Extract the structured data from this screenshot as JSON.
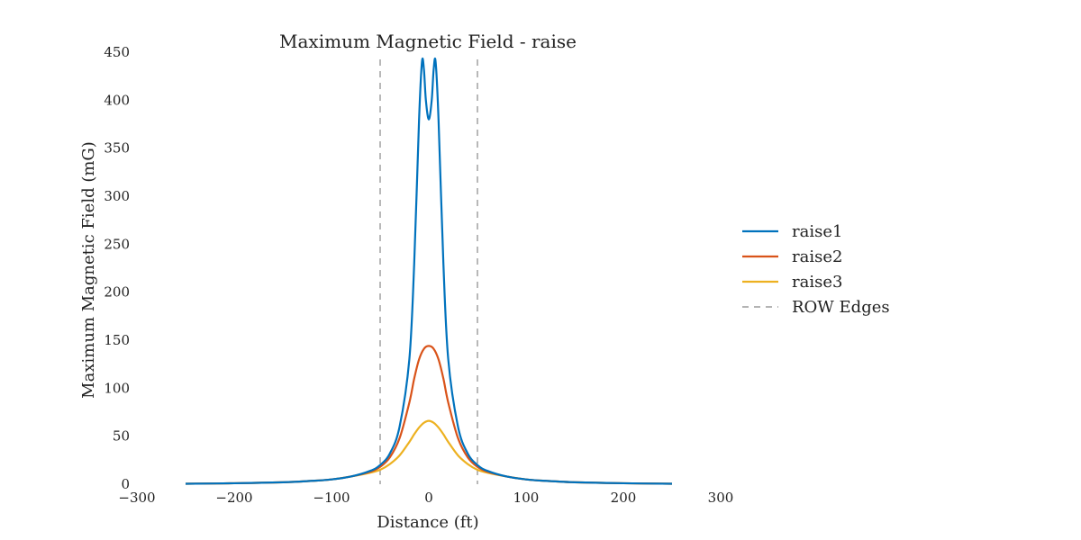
{
  "chart_data": {
    "type": "line",
    "title": "Maximum Magnetic Field - raise",
    "xlabel": "Distance (ft)",
    "ylabel": "Maximum Magnetic Field (mG)",
    "xlim": [
      -300,
      300
    ],
    "ylim": [
      0,
      450
    ],
    "xticks": [
      "−300",
      "−200",
      "−100",
      "0",
      "100",
      "200",
      "300"
    ],
    "yticks": [
      "0",
      "50",
      "100",
      "150",
      "200",
      "250",
      "300",
      "350",
      "400",
      "450"
    ],
    "grid": false,
    "legend_position": "right",
    "legend_entries": [
      "raise1",
      "raise2",
      "raise3",
      "ROW Edges"
    ],
    "row_edges": [
      -50,
      50
    ],
    "colors": {
      "raise1": "#0072bd",
      "raise2": "#d95319",
      "raise3": "#edb120",
      "row_edges": "#888888"
    },
    "series": [
      {
        "name": "raise1",
        "x": [
          -250,
          -200,
          -150,
          -120,
          -100,
          -80,
          -60,
          -50,
          -40,
          -30,
          -20,
          -15,
          -10,
          -7,
          -5,
          -3,
          0,
          3,
          5,
          7,
          10,
          15,
          20,
          30,
          40,
          50,
          60,
          80,
          100,
          120,
          150,
          200,
          250
        ],
        "y": [
          0.5,
          1,
          2,
          3.5,
          5,
          8,
          14,
          20,
          32,
          60,
          130,
          230,
          380,
          440,
          432,
          400,
          380,
          400,
          432,
          440,
          380,
          230,
          130,
          60,
          32,
          20,
          14,
          8,
          5,
          3.5,
          2,
          1,
          0.5
        ]
      },
      {
        "name": "raise2",
        "x": [
          -250,
          -200,
          -150,
          -120,
          -100,
          -80,
          -60,
          -50,
          -40,
          -30,
          -20,
          -15,
          -10,
          -5,
          0,
          5,
          10,
          15,
          20,
          30,
          40,
          50,
          60,
          80,
          100,
          120,
          150,
          200,
          250
        ],
        "y": [
          0.5,
          1,
          2,
          3.5,
          5,
          8,
          13,
          18,
          28,
          48,
          85,
          110,
          130,
          141,
          144,
          141,
          130,
          110,
          85,
          48,
          28,
          18,
          13,
          8,
          5,
          3.5,
          2,
          1,
          0.5
        ]
      },
      {
        "name": "raise3",
        "x": [
          -250,
          -200,
          -150,
          -120,
          -100,
          -80,
          -60,
          -50,
          -40,
          -30,
          -20,
          -15,
          -10,
          -5,
          0,
          5,
          10,
          15,
          20,
          30,
          40,
          50,
          60,
          80,
          100,
          120,
          150,
          200,
          250
        ],
        "y": [
          0.5,
          1,
          2,
          3.5,
          5,
          8,
          12,
          15,
          21,
          30,
          44,
          52,
          59,
          64,
          66,
          64,
          59,
          52,
          44,
          30,
          21,
          15,
          12,
          8,
          5,
          3.5,
          2,
          1,
          0.5
        ]
      }
    ]
  }
}
